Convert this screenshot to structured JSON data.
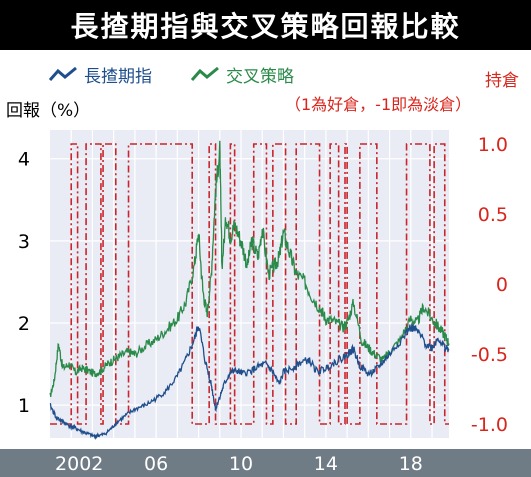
{
  "title": "長揸期指與交叉策略回報比較",
  "colors": {
    "long": "#1f4e8c",
    "cross": "#2a8a4a",
    "position": "#c9252b",
    "plot_bg": "#eaecf5",
    "axis_bar": "#6f7b85"
  },
  "chart_data": {
    "type": "line",
    "title": "長揸期指與交叉策略回報比較",
    "ylabel": "回報（%）",
    "y2label": "持倉",
    "y2note": "（1為好倉，-1即為淡倉）",
    "ylim": [
      0.6,
      4.35
    ],
    "y2lim": [
      -1.1,
      1.1
    ],
    "yticks": [
      1,
      2,
      3,
      4
    ],
    "y2ticks": [
      "1.0",
      "0.5",
      "0",
      "-0.5",
      "-1.0"
    ],
    "xlim": [
      2001.0,
      2019.8
    ],
    "xticks": [
      {
        "x": 2002,
        "label": "2002"
      },
      {
        "x": 2006,
        "label": "06"
      },
      {
        "x": 2010,
        "label": "10"
      },
      {
        "x": 2014,
        "label": "14"
      },
      {
        "x": 2018,
        "label": "18"
      }
    ],
    "series": [
      {
        "name": "長揸期指",
        "axis": "left",
        "x": [
          2001.0,
          2001.3,
          2001.6,
          2001.9,
          2002.2,
          2002.5,
          2002.8,
          2003.1,
          2003.3,
          2003.6,
          2003.9,
          2004.2,
          2004.6,
          2005.0,
          2005.5,
          2006.0,
          2006.5,
          2007.0,
          2007.4,
          2007.8,
          2008.0,
          2008.3,
          2008.6,
          2008.8,
          2009.0,
          2009.2,
          2009.5,
          2009.8,
          2010.1,
          2010.5,
          2010.9,
          2011.2,
          2011.5,
          2011.8,
          2012.0,
          2012.4,
          2012.8,
          2013.2,
          2013.6,
          2014.0,
          2014.4,
          2014.8,
          2015.0,
          2015.3,
          2015.6,
          2016.0,
          2016.3,
          2016.6,
          2017.0,
          2017.5,
          2018.0,
          2018.3,
          2018.7,
          2019.0,
          2019.3,
          2019.6,
          2019.8
        ],
        "values": [
          1.0,
          0.85,
          0.8,
          0.75,
          0.72,
          0.68,
          0.65,
          0.62,
          0.63,
          0.65,
          0.72,
          0.8,
          0.88,
          0.95,
          1.0,
          1.08,
          1.18,
          1.35,
          1.55,
          1.8,
          1.98,
          1.55,
          1.25,
          0.95,
          1.1,
          1.25,
          1.4,
          1.42,
          1.38,
          1.42,
          1.48,
          1.5,
          1.4,
          1.25,
          1.4,
          1.45,
          1.52,
          1.55,
          1.4,
          1.45,
          1.52,
          1.58,
          1.62,
          1.68,
          1.48,
          1.38,
          1.42,
          1.5,
          1.62,
          1.78,
          1.95,
          1.9,
          1.75,
          1.7,
          1.82,
          1.7,
          1.68
        ]
      },
      {
        "name": "交叉策略",
        "axis": "left",
        "x": [
          2001.0,
          2001.2,
          2001.4,
          2001.6,
          2001.9,
          2002.2,
          2002.5,
          2002.8,
          2003.1,
          2003.4,
          2003.7,
          2004.0,
          2004.3,
          2004.7,
          2005.0,
          2005.5,
          2006.0,
          2006.5,
          2007.0,
          2007.4,
          2007.8,
          2008.0,
          2008.2,
          2008.4,
          2008.6,
          2008.8,
          2009.0,
          2009.1,
          2009.3,
          2009.5,
          2009.7,
          2010.0,
          2010.3,
          2010.5,
          2010.8,
          2011.0,
          2011.3,
          2011.6,
          2011.8,
          2012.0,
          2012.3,
          2012.6,
          2013.0,
          2013.4,
          2013.8,
          2014.0,
          2014.4,
          2014.8,
          2015.0,
          2015.3,
          2015.7,
          2016.0,
          2016.3,
          2016.7,
          2017.0,
          2017.5,
          2018.0,
          2018.3,
          2018.6,
          2019.0,
          2019.3,
          2019.6,
          2019.8
        ],
        "values": [
          1.1,
          1.3,
          1.75,
          1.45,
          1.5,
          1.4,
          1.45,
          1.42,
          1.38,
          1.42,
          1.5,
          1.55,
          1.6,
          1.65,
          1.62,
          1.72,
          1.8,
          1.92,
          2.05,
          2.25,
          2.7,
          3.1,
          2.4,
          2.1,
          2.6,
          3.6,
          4.1,
          2.7,
          3.3,
          3.05,
          3.2,
          3.0,
          2.7,
          3.0,
          2.8,
          3.15,
          2.6,
          2.7,
          2.8,
          3.1,
          2.85,
          2.6,
          2.5,
          2.3,
          2.15,
          2.05,
          2.02,
          1.95,
          2.0,
          2.25,
          1.78,
          1.7,
          1.62,
          1.55,
          1.65,
          1.8,
          2.05,
          2.0,
          2.2,
          2.05,
          1.95,
          1.85,
          1.75
        ]
      },
      {
        "name": "持倉",
        "axis": "right",
        "type": "step",
        "x": [
          2001.0,
          2002.0,
          2002.3,
          2002.7,
          2003.4,
          2003.5,
          2004.1,
          2004.7,
          2007.7,
          2008.5,
          2008.8,
          2009.5,
          2009.7,
          2010.6,
          2011.2,
          2011.5,
          2012.1,
          2012.6,
          2013.7,
          2014.2,
          2014.6,
          2014.9,
          2015.0,
          2015.6,
          2016.4,
          2017.8,
          2018.9,
          2019.1,
          2019.6,
          2019.8
        ],
        "values": [
          -1,
          1,
          -1,
          1,
          -1,
          1,
          -1,
          1,
          -1,
          1,
          -1,
          1,
          -1,
          1,
          -1,
          1,
          -1,
          1,
          -1,
          1,
          -1,
          1,
          -1,
          1,
          -1,
          1,
          -1,
          1,
          -1,
          -1
        ]
      }
    ]
  }
}
